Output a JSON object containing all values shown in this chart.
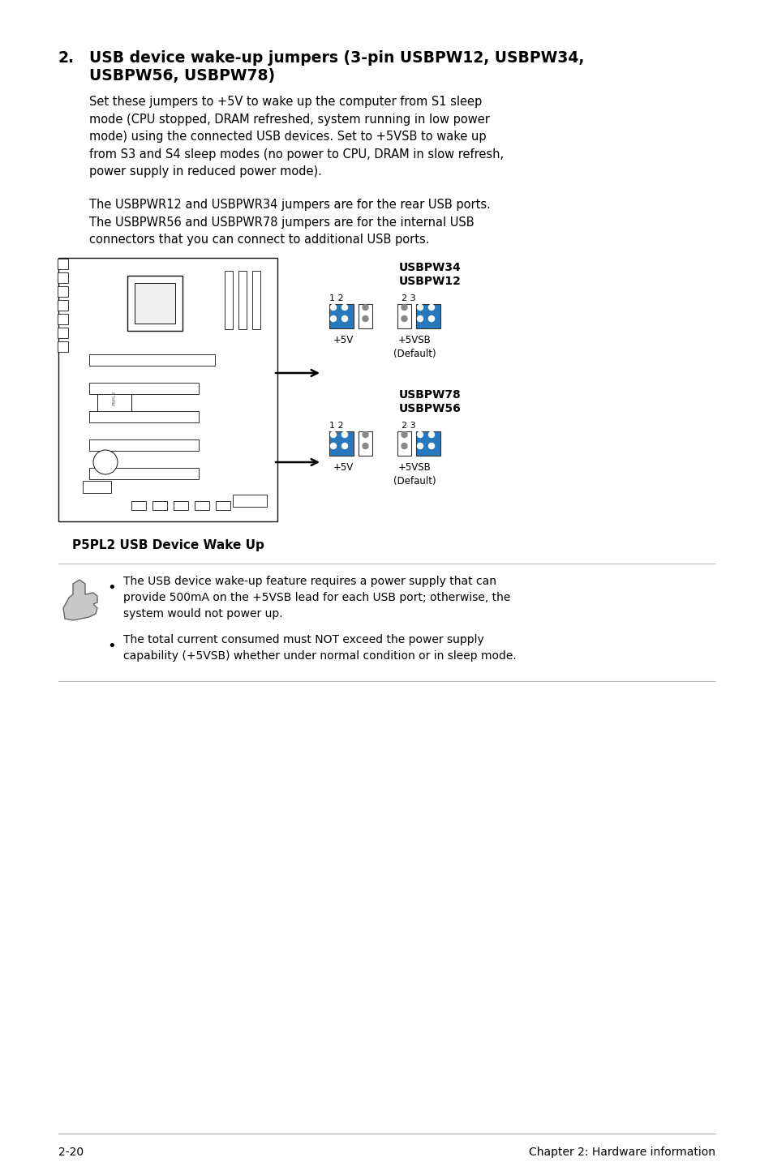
{
  "bg_color": "#ffffff",
  "section_number": "2.",
  "section_title_line1": "USB device wake-up jumpers (3-pin USBPW12, USBPW34,",
  "section_title_line2": "USBPW56, USBPW78)",
  "body_para1": "Set these jumpers to +5V to wake up the computer from S1 sleep\nmode (CPU stopped, DRAM refreshed, system running in low power\nmode) using the connected USB devices. Set to +5VSB to wake up\nfrom S3 and S4 sleep modes (no power to CPU, DRAM in slow refresh,\npower supply in reduced power mode).",
  "body_para2": "The USBPWR12 and USBPWR34 jumpers are for the rear USB ports.\nThe USBPWR56 and USBPWR78 jumpers are for the internal USB\nconnectors that you can connect to additional USB ports.",
  "diagram_label": "P5PL2 USB Device Wake Up",
  "jumper_group1_label1": "USBPW34",
  "jumper_group1_label2": "USBPW12",
  "jumper_group2_label1": "USBPW78",
  "jumper_group2_label2": "USBPW56",
  "note_bullet1": "The USB device wake-up feature requires a power supply that can\nprovide 500mA on the +5VSB lead for each USB port; otherwise, the\nsystem would not power up.",
  "note_bullet2": "The total current consumed must NOT exceed the power supply\ncapability (+5VSB) whether under normal condition or in sleep mode.",
  "footer_left": "2-20",
  "footer_right": "Chapter 2: Hardware information",
  "jumper_blue": "#2878be",
  "text_color": "#000000",
  "lm": 72,
  "rm": 882,
  "indent": 110
}
